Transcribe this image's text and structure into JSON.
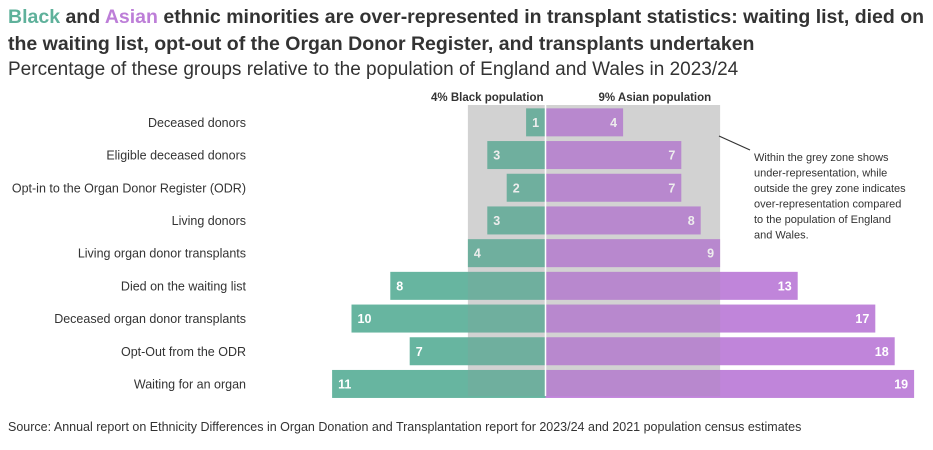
{
  "title": {
    "black_word": "Black",
    "and_word": " and ",
    "asian_word": "Asian",
    "rest": " ethnic minorities are over-represented in transplant statistics: waiting list, died on the waiting list, opt-out of the Organ Donor Register, and transplants undertaken"
  },
  "subtitle": "Percentage of these groups relative to the population of England and Wales in 2023/24",
  "source": "Source: Annual report on Ethnicity Differences in Organ Donation and Transplantation report for 2023/24 and 2021 population census estimates",
  "colors": {
    "black": "#5fb19b",
    "asian": "#bd7ed8",
    "grey_zone": "#dedede",
    "text": "#333333"
  },
  "chart_data": {
    "type": "bar",
    "orientation": "horizontal-diverging",
    "categories": [
      "Deceased donors",
      "Eligible deceased donors",
      "Opt-in to the Organ Donor Register (ODR)",
      "Living donors",
      "Living organ donor transplants",
      "Died on the waiting list",
      "Deceased organ donor transplants",
      "Opt-Out from the ODR",
      "Waiting for an organ"
    ],
    "series": [
      {
        "name": "Black",
        "color": "#5fb19b",
        "direction": "left",
        "values": [
          1,
          3,
          2,
          3,
          4,
          8,
          10,
          7,
          11
        ]
      },
      {
        "name": "Asian",
        "color": "#bd7ed8",
        "direction": "right",
        "values": [
          4,
          7,
          7,
          8,
          9,
          13,
          17,
          18,
          19
        ]
      }
    ],
    "reference_lines": [
      {
        "series": "Black",
        "value": 4,
        "label": "4% Black population"
      },
      {
        "series": "Asian",
        "value": 9,
        "label": "9% Asian population"
      }
    ],
    "annotation": "Within the grey zone shows under-representation, while outside the grey zone indicates over-representation compared to the population of England and Wales.",
    "annotation_lines": [
      "Within the grey zone shows",
      "under-representation, while",
      "outside the grey zone indicates",
      "over-representation compared",
      "to the population of England",
      "and Wales."
    ],
    "grid": false,
    "legend": "none (series named in title)"
  }
}
